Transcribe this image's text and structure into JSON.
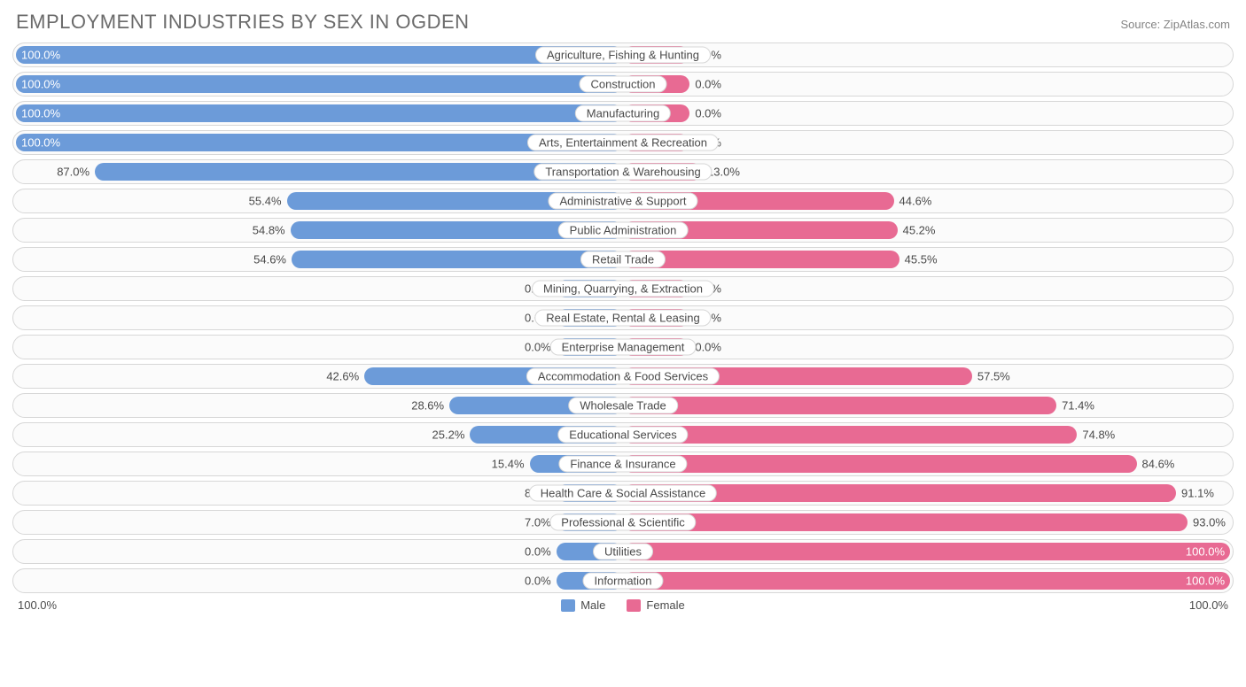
{
  "title": "EMPLOYMENT INDUSTRIES BY SEX IN OGDEN",
  "source": "Source: ZipAtlas.com",
  "colors": {
    "male": "#6c9bd9",
    "female": "#e86a93",
    "row_border": "#d7d7d7",
    "row_bg": "#fbfbfb",
    "text": "#4a4a4a",
    "title_text": "#6b6b6b",
    "source_text": "#848484",
    "page_bg": "#ffffff",
    "label_bg": "#ffffff"
  },
  "axis": {
    "left": "100.0%",
    "right": "100.0%"
  },
  "legend": [
    {
      "label": "Male",
      "color": "#6c9bd9"
    },
    {
      "label": "Female",
      "color": "#e86a93"
    }
  ],
  "min_bar_pct": 11,
  "categories": [
    {
      "label": "Agriculture, Fishing & Hunting",
      "male": 100.0,
      "female": 0.0,
      "male_text": "100.0%",
      "female_text": "0.0%"
    },
    {
      "label": "Construction",
      "male": 100.0,
      "female": 0.0,
      "male_text": "100.0%",
      "female_text": "0.0%"
    },
    {
      "label": "Manufacturing",
      "male": 100.0,
      "female": 0.0,
      "male_text": "100.0%",
      "female_text": "0.0%"
    },
    {
      "label": "Arts, Entertainment & Recreation",
      "male": 100.0,
      "female": 0.0,
      "male_text": "100.0%",
      "female_text": "0.0%"
    },
    {
      "label": "Transportation & Warehousing",
      "male": 87.0,
      "female": 13.0,
      "male_text": "87.0%",
      "female_text": "13.0%"
    },
    {
      "label": "Administrative & Support",
      "male": 55.4,
      "female": 44.6,
      "male_text": "55.4%",
      "female_text": "44.6%"
    },
    {
      "label": "Public Administration",
      "male": 54.8,
      "female": 45.2,
      "male_text": "54.8%",
      "female_text": "45.2%"
    },
    {
      "label": "Retail Trade",
      "male": 54.6,
      "female": 45.5,
      "male_text": "54.6%",
      "female_text": "45.5%"
    },
    {
      "label": "Mining, Quarrying, & Extraction",
      "male": 0.0,
      "female": 0.0,
      "male_text": "0.0%",
      "female_text": "0.0%"
    },
    {
      "label": "Real Estate, Rental & Leasing",
      "male": 0.0,
      "female": 0.0,
      "male_text": "0.0%",
      "female_text": "0.0%"
    },
    {
      "label": "Enterprise Management",
      "male": 0.0,
      "female": 0.0,
      "male_text": "0.0%",
      "female_text": "0.0%"
    },
    {
      "label": "Accommodation & Food Services",
      "male": 42.6,
      "female": 57.5,
      "male_text": "42.6%",
      "female_text": "57.5%"
    },
    {
      "label": "Wholesale Trade",
      "male": 28.6,
      "female": 71.4,
      "male_text": "28.6%",
      "female_text": "71.4%"
    },
    {
      "label": "Educational Services",
      "male": 25.2,
      "female": 74.8,
      "male_text": "25.2%",
      "female_text": "74.8%"
    },
    {
      "label": "Finance & Insurance",
      "male": 15.4,
      "female": 84.6,
      "male_text": "15.4%",
      "female_text": "84.6%"
    },
    {
      "label": "Health Care & Social Assistance",
      "male": 8.9,
      "female": 91.1,
      "male_text": "8.9%",
      "female_text": "91.1%"
    },
    {
      "label": "Professional & Scientific",
      "male": 7.0,
      "female": 93.0,
      "male_text": "7.0%",
      "female_text": "93.0%"
    },
    {
      "label": "Utilities",
      "male": 0.0,
      "female": 100.0,
      "male_text": "0.0%",
      "female_text": "100.0%"
    },
    {
      "label": "Information",
      "male": 0.0,
      "female": 100.0,
      "male_text": "0.0%",
      "female_text": "100.0%"
    }
  ]
}
